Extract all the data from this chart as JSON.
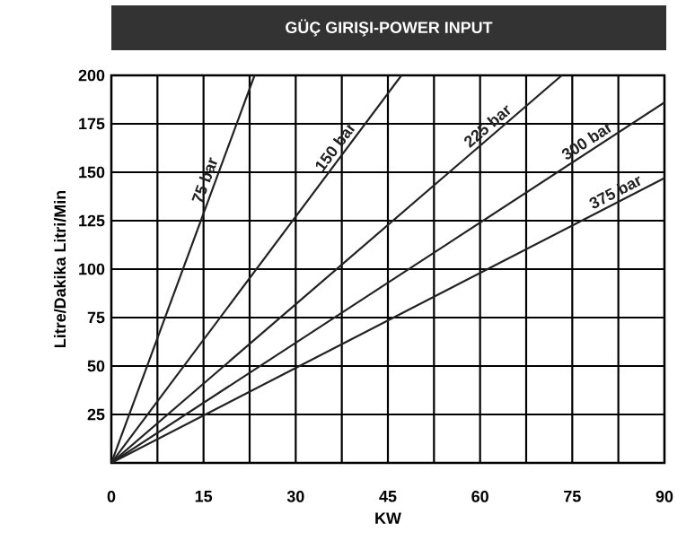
{
  "chart_data": {
    "type": "line",
    "title": "GÜÇ GIRIŞI-POWER INPUT",
    "xlabel": "KW",
    "ylabel": "Litre/Dakika  Litri/Min",
    "xlim": [
      0,
      90
    ],
    "ylim": [
      0,
      200
    ],
    "xticks": [
      0,
      {
        "value": 7.5,
        "label": null
      },
      15,
      {
        "value": 22.5,
        "label": null
      },
      30,
      {
        "value": 37.5,
        "label": null
      },
      45,
      {
        "value": 52.5,
        "label": null
      },
      60,
      {
        "value": 67.5,
        "label": null
      },
      75,
      {
        "value": 82.5,
        "label": null
      },
      90
    ],
    "yticks": [
      25,
      50,
      75,
      100,
      125,
      150,
      175,
      200
    ],
    "grid": true,
    "marker": "none",
    "line_style": "solid",
    "legend": false,
    "series": [
      {
        "name": "75 bar",
        "color": "#222222",
        "x": [
          0,
          23.3
        ],
        "values": [
          0,
          200
        ]
      },
      {
        "name": "150 bar",
        "color": "#222222",
        "x": [
          0,
          47.2
        ],
        "values": [
          0,
          200
        ]
      },
      {
        "name": "225 bar",
        "color": "#222222",
        "x": [
          0,
          73.3
        ],
        "values": [
          0,
          200
        ]
      },
      {
        "name": "300 bar",
        "color": "#222222",
        "x": [
          0,
          90
        ],
        "values": [
          0,
          186
        ]
      },
      {
        "name": "375 bar",
        "color": "#222222",
        "x": [
          0,
          90
        ],
        "values": [
          0,
          147
        ]
      }
    ]
  }
}
